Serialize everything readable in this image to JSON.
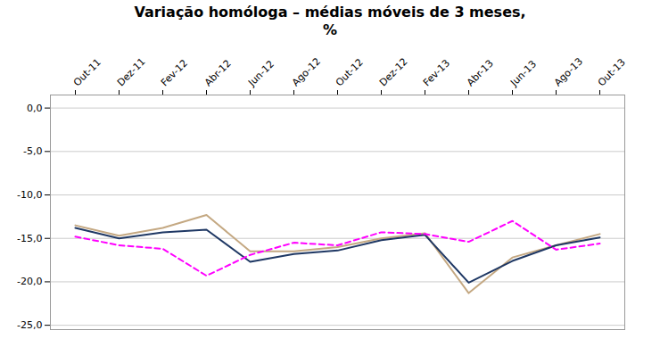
{
  "chart_data": {
    "type": "line",
    "title": "Variação homóloga – médias móveis de 3 meses,",
    "subtitle": "%",
    "categories": [
      "Out-11",
      "Dez-11",
      "Fev-12",
      "Abr-12",
      "Jun-12",
      "Ago-12",
      "Out-12",
      "Dez-12",
      "Fev-13",
      "Abr-13",
      "Jun-13",
      "Ago-13",
      "Out-13"
    ],
    "series": [
      {
        "color": "#C4A882",
        "line_style": "solid",
        "values": [
          -13.5,
          -14.7,
          -13.8,
          -12.3,
          -16.5,
          -16.5,
          -16.0,
          -15.0,
          -14.4,
          -21.3,
          -17.2,
          -15.8,
          -14.5
        ]
      },
      {
        "color": "#1F3864",
        "line_style": "solid",
        "values": [
          -13.8,
          -15.0,
          -14.3,
          -14.0,
          -17.7,
          -16.8,
          -16.4,
          -15.2,
          -14.6,
          -20.1,
          -17.6,
          -15.8,
          -14.9
        ]
      },
      {
        "color": "#FF00FF",
        "line_style": "dashed",
        "values": [
          -14.8,
          -15.8,
          -16.2,
          -19.3,
          -16.9,
          -15.5,
          -15.8,
          -14.3,
          -14.5,
          -15.4,
          -13.0,
          -16.3,
          -15.6
        ]
      }
    ],
    "ylim": [
      -25.5,
      1.5
    ],
    "yticks": [
      {
        "value": 0.0,
        "label": "0,0"
      },
      {
        "value": -5.0,
        "label": "-5,0"
      },
      {
        "value": -10.0,
        "label": "-10,0"
      },
      {
        "value": -15.0,
        "label": "-15,0"
      },
      {
        "value": -20.0,
        "label": "-20,0"
      },
      {
        "value": -25.0,
        "label": "-25,0"
      }
    ],
    "grid": true
  }
}
